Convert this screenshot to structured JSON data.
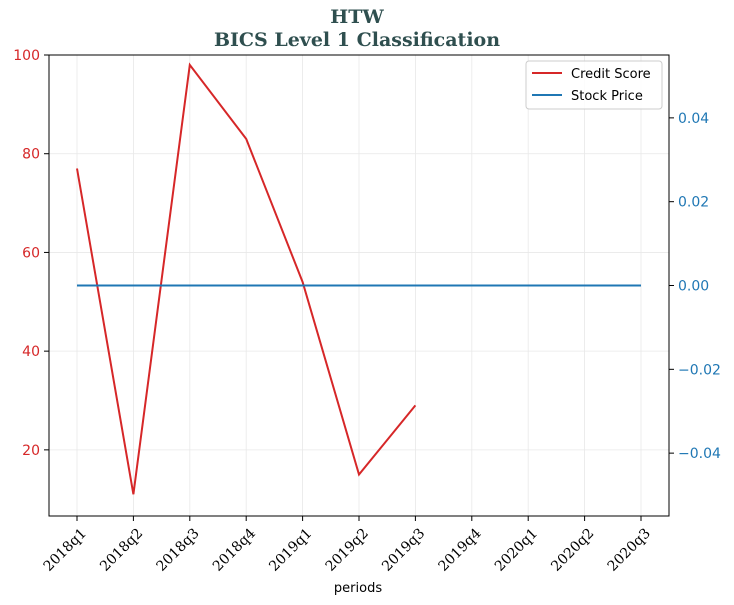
{
  "chart_data": {
    "type": "line",
    "title": "HTW",
    "subtitle": "BICS Level 1 Classification",
    "xlabel": "periods",
    "categories": [
      "2018q1",
      "2018q2",
      "2018q3",
      "2018q4",
      "2019q1",
      "2019q2",
      "2019q3",
      "2019q4",
      "2020q1",
      "2020q2",
      "2020q3"
    ],
    "series": [
      {
        "name": "Credit Score",
        "axis": "left",
        "color": "#d62728",
        "values": [
          77,
          11,
          98,
          83,
          54,
          15,
          29,
          null,
          null,
          null,
          null
        ]
      },
      {
        "name": "Stock Price",
        "axis": "right",
        "color": "#1f77b4",
        "values": [
          0,
          0,
          0,
          0,
          0,
          0,
          0,
          0,
          0,
          0,
          0
        ]
      }
    ],
    "y_left": {
      "ylim": [
        6.6,
        100
      ],
      "ticks": [
        20,
        40,
        60,
        80,
        100
      ],
      "tick_labels": [
        "20",
        "40",
        "60",
        "80",
        "100"
      ],
      "color": "#d62728"
    },
    "y_right": {
      "ylim": [
        -0.055,
        0.055
      ],
      "ticks": [
        -0.04,
        -0.02,
        0.0,
        0.02,
        0.04
      ],
      "tick_labels": [
        "−0.04",
        "−0.02",
        "0.00",
        "0.02",
        "0.04"
      ],
      "color": "#1f77b4"
    },
    "grid": true,
    "legend_position": "top-right"
  }
}
